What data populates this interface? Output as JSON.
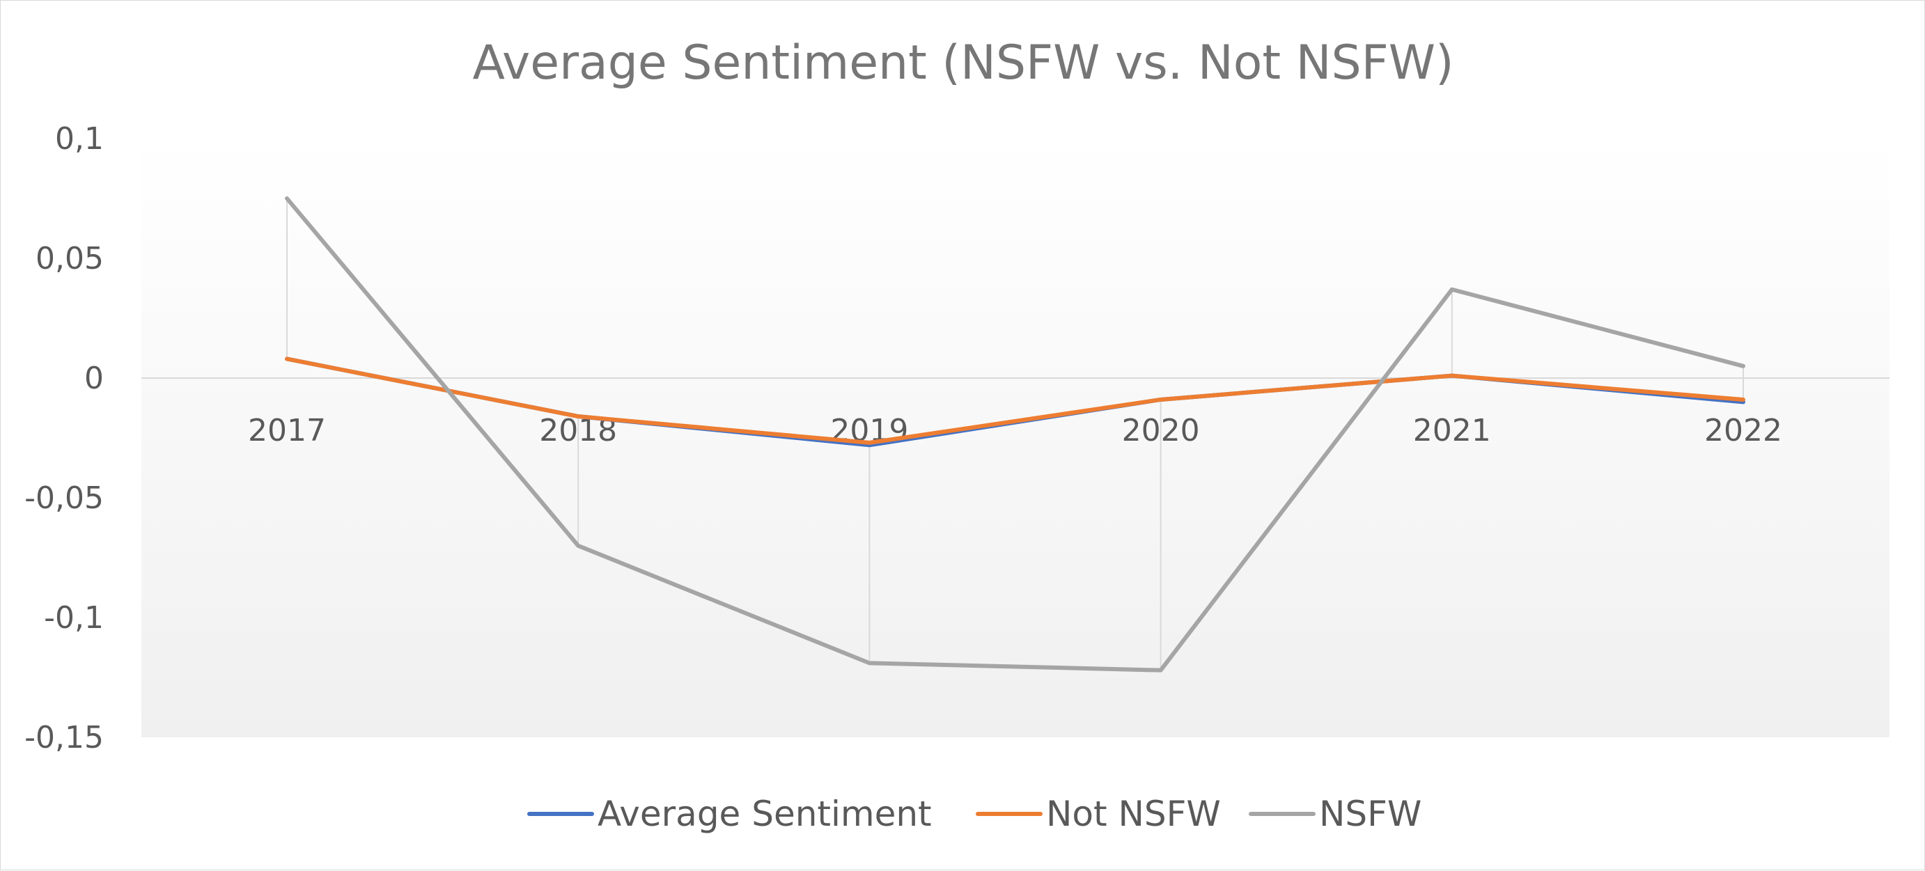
{
  "chart_data": {
    "type": "line",
    "title": "Average Sentiment (NSFW vs. Not NSFW)",
    "xlabel": "",
    "ylabel": "",
    "categories": [
      "2017",
      "2018",
      "2019",
      "2020",
      "2021",
      "2022"
    ],
    "ylim": [
      -0.15,
      0.1
    ],
    "y_ticks": [
      0.1,
      0.05,
      0,
      -0.05,
      -0.1,
      -0.15
    ],
    "y_tick_labels": [
      "0,1",
      "0,05",
      "0",
      "-0,05",
      "-0,1",
      "-0,15"
    ],
    "grid": false,
    "category_axis_crosses_at": 0,
    "legend_position": "bottom",
    "series": [
      {
        "name": "Average Sentiment",
        "color": "#4472C4",
        "values": [
          0.008,
          -0.016,
          -0.028,
          -0.009,
          0.001,
          -0.01
        ]
      },
      {
        "name": "Not NSFW",
        "color": "#ED7D31",
        "values": [
          0.008,
          -0.016,
          -0.027,
          -0.009,
          0.001,
          -0.009
        ]
      },
      {
        "name": "NSFW",
        "color": "#A5A5A5",
        "values": [
          0.075,
          -0.07,
          -0.119,
          -0.122,
          0.037,
          0.005
        ]
      }
    ]
  }
}
